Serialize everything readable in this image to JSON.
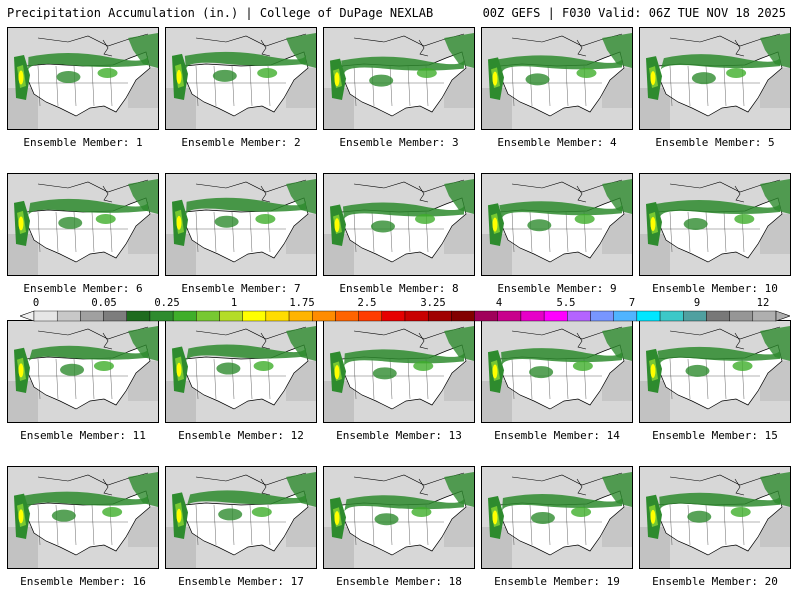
{
  "header": {
    "left": "Precipitation Accumulation (in.) | College of DuPage NEXLAB",
    "right": "00Z GEFS | F030 Valid: 06Z TUE NOV 18 2025"
  },
  "members": [
    "Ensemble Member: 1",
    "Ensemble Member: 2",
    "Ensemble Member: 3",
    "Ensemble Member: 4",
    "Ensemble Member: 5",
    "Ensemble Member: 6",
    "Ensemble Member: 7",
    "Ensemble Member: 8",
    "Ensemble Member: 9",
    "Ensemble Member: 10",
    "Ensemble Member: 11",
    "Ensemble Member: 12",
    "Ensemble Member: 13",
    "Ensemble Member: 14",
    "Ensemble Member: 15",
    "Ensemble Member: 16",
    "Ensemble Member: 17",
    "Ensemble Member: 18",
    "Ensemble Member: 19",
    "Ensemble Member: 20"
  ],
  "colorbar": {
    "tick_labels": [
      "0",
      "0.05",
      "0.25",
      "1",
      "1.75",
      "2.5",
      "3.25",
      "4",
      "5.5",
      "7",
      "9",
      "12"
    ],
    "colors": [
      "#e6e6e6",
      "#c8c8c8",
      "#a0a0a0",
      "#7d7d7d",
      "#1e6b1e",
      "#2e8b2e",
      "#3fae2a",
      "#77c832",
      "#b4dc28",
      "#ffff00",
      "#ffdc00",
      "#ffb400",
      "#ff8c00",
      "#ff6400",
      "#ff3c00",
      "#e60000",
      "#c80000",
      "#a00000",
      "#820000",
      "#a0005a",
      "#c8008c",
      "#e600c8",
      "#ff00ff",
      "#b464ff",
      "#7896ff",
      "#50b4ff",
      "#00e6ff",
      "#3cc8c8",
      "#50a0a0",
      "#787878",
      "#969696",
      "#afafaf"
    ]
  },
  "colors": {
    "background": "#dcdcdc",
    "light_precip": "#2e8b2e",
    "moderate_precip": "#77c832",
    "heavy_precip": "#ffff00"
  }
}
